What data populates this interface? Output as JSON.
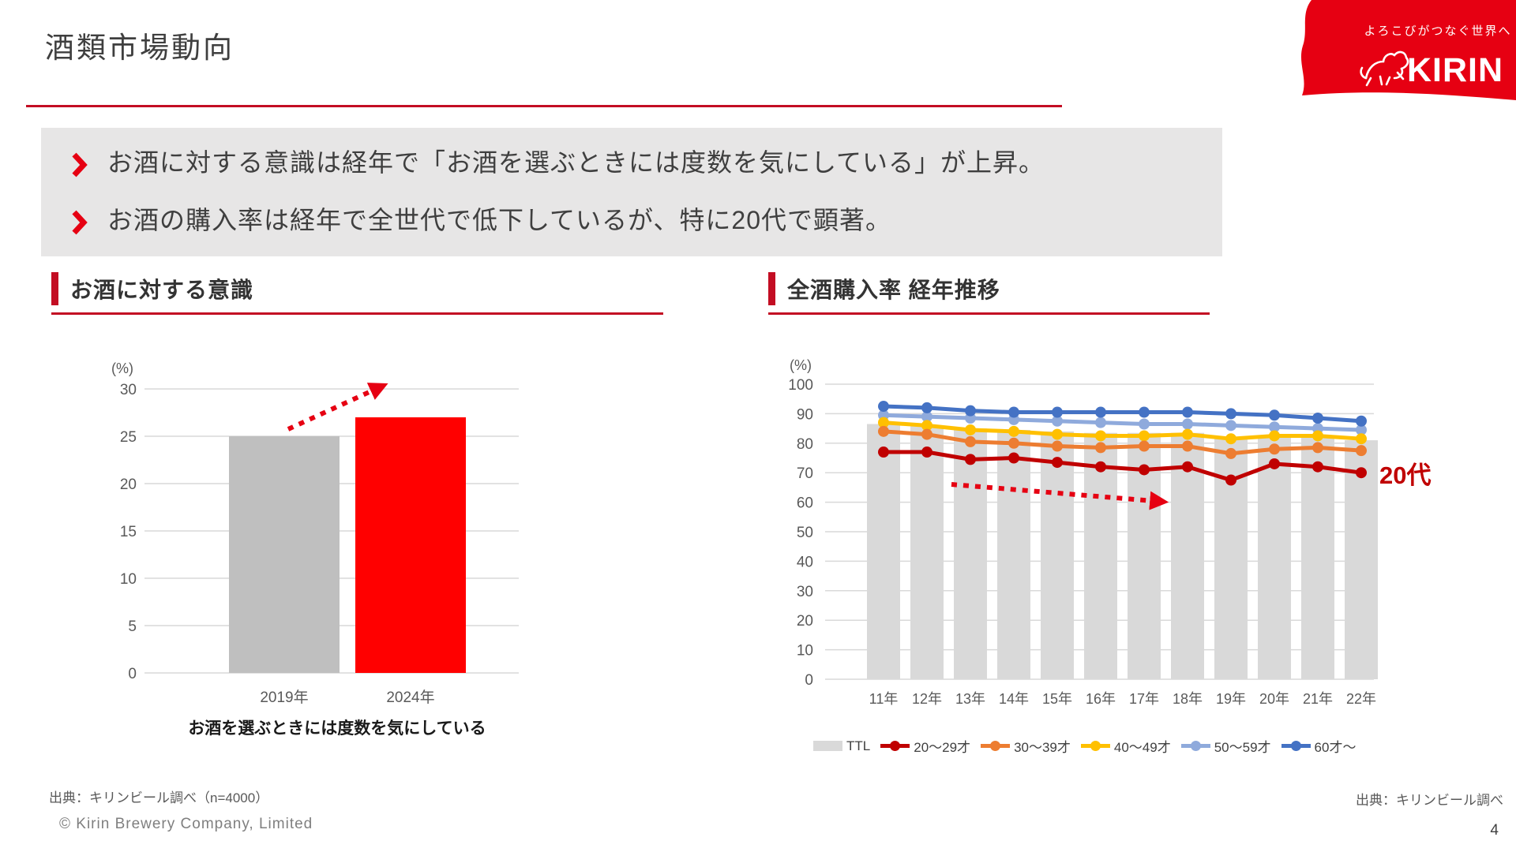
{
  "header": {
    "title": "酒類市場動向",
    "logo": {
      "tagline": "よろこびがつなぐ世界へ",
      "brand": "KIRIN",
      "brand_color": "#e60012"
    }
  },
  "summary": {
    "bullets": [
      "お酒に対する意識は経年で「お酒を選ぶときには度数を気にしている」が上昇。",
      "お酒の購入率は経年で全世代で低下しているが、特に20代で顕著。"
    ]
  },
  "sections": {
    "left": {
      "title": "お酒に対する意識"
    },
    "right": {
      "title": "全酒購入率 経年推移"
    }
  },
  "chart_data": [
    {
      "type": "bar",
      "title": "お酒に対する意識",
      "unit_label": "(%)",
      "categories": [
        "2019年",
        "2024年"
      ],
      "values": [
        25,
        27
      ],
      "bar_colors": [
        "#bfbfbf",
        "#ff0000"
      ],
      "ylim": [
        0,
        30
      ],
      "ytick_step": 5,
      "grid": true,
      "arrow_color": "#e60012",
      "annotation": "rising dotted arrow",
      "caption": "お酒を選ぶときには度数を気にしている"
    },
    {
      "type": "line",
      "title": "全酒購入率 経年推移",
      "unit_label": "(%)",
      "categories": [
        "11年",
        "12年",
        "13年",
        "14年",
        "15年",
        "16年",
        "17年",
        "18年",
        "19年",
        "20年",
        "21年",
        "22年"
      ],
      "series": [
        {
          "name": "TTL",
          "render": "bar",
          "color": "#d9d9d9",
          "values": [
            86.5,
            86,
            85,
            84.5,
            84,
            83.5,
            83.5,
            83.5,
            82,
            82.5,
            82,
            81
          ]
        },
        {
          "name": "20～29才",
          "render": "line",
          "color": "#c00000",
          "values": [
            77,
            77,
            74.5,
            75,
            73.5,
            72,
            71,
            72,
            67.5,
            73,
            72,
            70
          ]
        },
        {
          "name": "30～39才",
          "render": "line",
          "color": "#ed7d31",
          "values": [
            84,
            83,
            80.5,
            80,
            79,
            78.5,
            79,
            79,
            76.5,
            78,
            78.5,
            77.5
          ]
        },
        {
          "name": "40～49才",
          "render": "line",
          "color": "#ffc000",
          "values": [
            87,
            86,
            84.5,
            84,
            83,
            82.5,
            82.5,
            83,
            81.5,
            82.5,
            82.5,
            81.5
          ]
        },
        {
          "name": "50～59才",
          "render": "line",
          "color": "#8faadc",
          "values": [
            89.5,
            89,
            88.5,
            88,
            87.5,
            87,
            86.5,
            86.5,
            86,
            85.5,
            85,
            84.5
          ]
        },
        {
          "name": "60才～",
          "render": "line",
          "color": "#4472c4",
          "values": [
            92.5,
            92,
            91,
            90.5,
            90.5,
            90.5,
            90.5,
            90.5,
            90,
            89.5,
            88.5,
            87.5
          ]
        }
      ],
      "ylim": [
        0,
        100
      ],
      "ytick_step": 10,
      "grid": true,
      "legend_position": "bottom",
      "arrow_color": "#e60012",
      "annotation_label": "20代",
      "annotation_color": "#c00000"
    }
  ],
  "footer": {
    "source_left": "出典：キリンビール調べ（n=4000）",
    "source_right": "出典：キリンビール調べ",
    "copyright": "© Kirin  Brewery Company, Limited",
    "page_number": "4"
  }
}
